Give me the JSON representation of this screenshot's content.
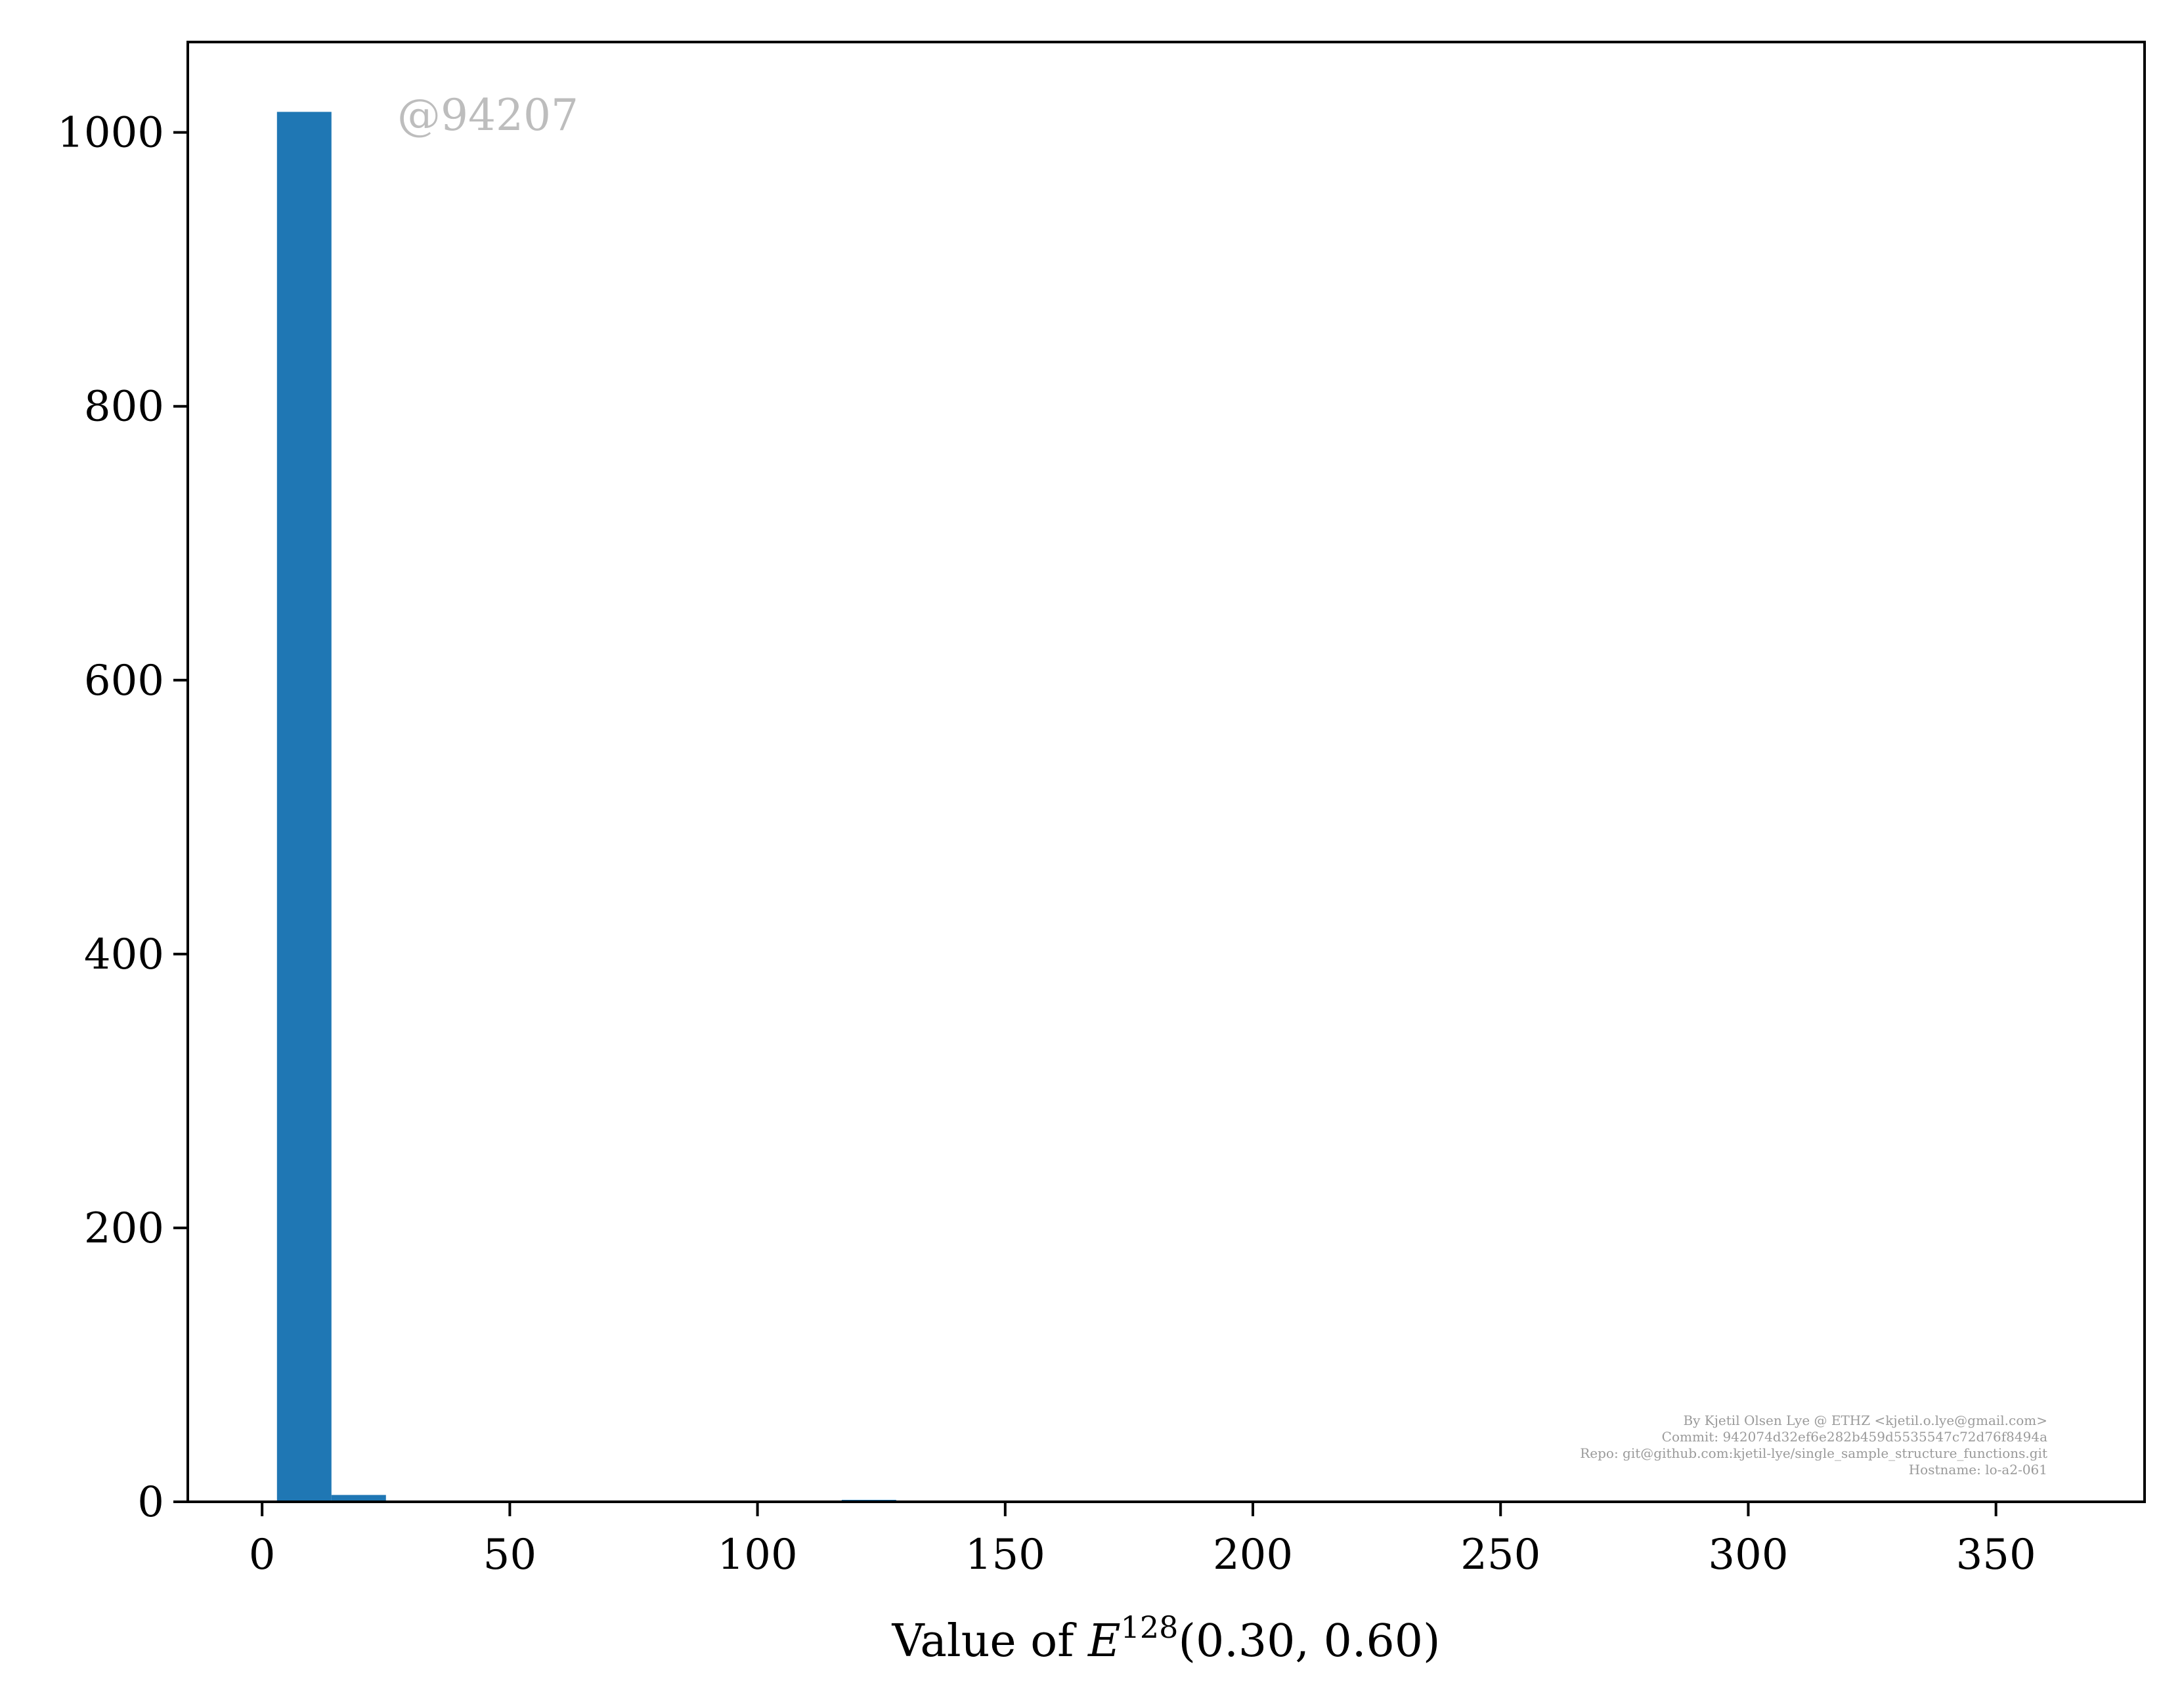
{
  "chart_data": {
    "type": "bar",
    "xlabel": {
      "prefix": "Value of ",
      "symbol": "E",
      "superscript": "128",
      "suffix": "(0.30, 0.60)"
    },
    "ylabel": "",
    "xlim": [
      -15,
      380
    ],
    "ylim": [
      0,
      1066
    ],
    "xticks": [
      0,
      50,
      100,
      150,
      200,
      250,
      300,
      350
    ],
    "yticks": [
      0,
      200,
      400,
      600,
      800,
      1000
    ],
    "bar_color": "#1f77b4",
    "bins": [
      {
        "x0": 3,
        "x1": 14,
        "value": 1015
      },
      {
        "x0": 14,
        "x1": 25,
        "value": 5
      },
      {
        "x0": 117,
        "x1": 128,
        "value": 1
      }
    ],
    "watermark": "@94207",
    "credits": [
      "By Kjetil Olsen Lye @ ETHZ <kjetil.o.lye@gmail.com>",
      "Commit: 942074d32ef6e282b459d5535547c72d76f8494a",
      "Repo: git@github.com:kjetil-lye/single_sample_structure_functions.git",
      "Hostname: lo-a2-061"
    ]
  }
}
